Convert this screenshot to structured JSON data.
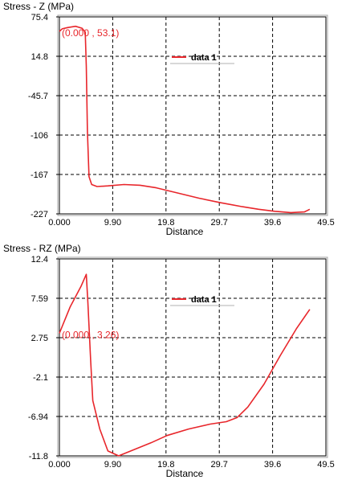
{
  "chart_data": [
    {
      "type": "line",
      "title": "Stress - Z (MPa)",
      "xlabel": "Distance",
      "ylabel": "",
      "xlim": [
        0,
        49.5
      ],
      "ylim": [
        -227,
        75.4
      ],
      "x_ticks": [
        "0.000",
        "9.90",
        "19.8",
        "29.7",
        "39.6",
        "49.5"
      ],
      "y_ticks": [
        "75.4",
        "14.8",
        "-45.7",
        "-106",
        "-167",
        "-227"
      ],
      "grid": true,
      "legend_position": "top-right",
      "annotation": "(0.000 , 53.1)",
      "series": [
        {
          "name": "data 1",
          "color": "#e8262b",
          "x": [
            0,
            0.5,
            1.5,
            3.0,
            4.2,
            4.8,
            5.0,
            5.2,
            5.5,
            6.0,
            7.0,
            9.0,
            12.0,
            15.0,
            18.0,
            22.0,
            26.0,
            30.0,
            34.0,
            37.0,
            40.0,
            43.0,
            45.5,
            46.5
          ],
          "y": [
            53.1,
            57,
            59,
            61,
            58,
            52,
            0,
            -100,
            -170,
            -182,
            -185,
            -184,
            -182,
            -183,
            -187,
            -195,
            -203,
            -210,
            -216,
            -220,
            -223,
            -225,
            -224,
            -220
          ]
        }
      ]
    },
    {
      "type": "line",
      "title": "Stress - RZ (MPa)",
      "xlabel": "Distance",
      "ylabel": "",
      "xlim": [
        0,
        49.5
      ],
      "ylim": [
        -11.8,
        12.4
      ],
      "x_ticks": [
        "0.000",
        "9.90",
        "19.8",
        "29.7",
        "39.6",
        "49.5"
      ],
      "y_ticks": [
        "12.4",
        "7.59",
        "2.75",
        "-2.1",
        "-6.94",
        "-11.8"
      ],
      "grid": true,
      "legend_position": "top-right",
      "annotation": "(0.000 , 3.26)",
      "series": [
        {
          "name": "data 1",
          "color": "#e8262b",
          "x": [
            0,
            2.0,
            4.0,
            5.0,
            5.3,
            5.8,
            6.2,
            7.5,
            9.0,
            11.0,
            14.0,
            17.0,
            20.0,
            24.0,
            28.0,
            31.0,
            33.0,
            35.0,
            38.0,
            41.0,
            44.0,
            46.5
          ],
          "y": [
            3.26,
            6.5,
            9.0,
            10.5,
            7.0,
            0,
            -5.0,
            -8.5,
            -11.2,
            -11.8,
            -11.0,
            -10.2,
            -9.3,
            -8.5,
            -7.9,
            -7.6,
            -7.1,
            -5.8,
            -3.0,
            0.5,
            3.8,
            6.2
          ]
        }
      ]
    }
  ]
}
